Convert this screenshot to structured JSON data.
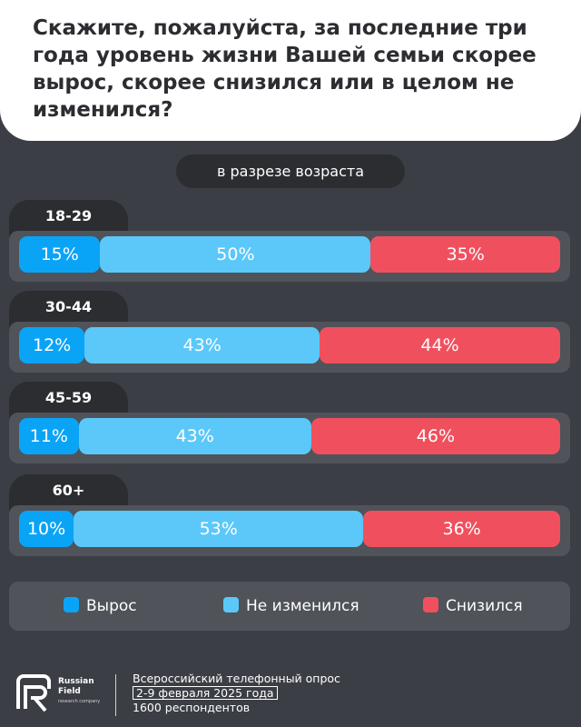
{
  "title": "Скажите, пожалуйста, за последние три года уровень жизни Вашей семьи скорее вырос, скорее снизился или в целом не изменился?",
  "subtitle": "в разрезе возраста",
  "colors": {
    "grew": "#0aa4f6",
    "unchanged": "#5bc8f9",
    "declined": "#f0505e",
    "background": "#3b3e44"
  },
  "chart_data": {
    "type": "bar",
    "orientation": "horizontal",
    "stacked": true,
    "unit": "%",
    "categories": [
      "18-29",
      "30-44",
      "45-59",
      "60+"
    ],
    "series": [
      {
        "name": "Вырос",
        "values": [
          15,
          12,
          11,
          10
        ]
      },
      {
        "name": "Не изменился",
        "values": [
          50,
          43,
          43,
          53
        ]
      },
      {
        "name": "Снизился",
        "values": [
          35,
          44,
          46,
          36
        ]
      }
    ],
    "legend_position": "bottom"
  },
  "legend": {
    "grew": "Вырос",
    "unchanged": "Не изменился",
    "declined": "Снизился"
  },
  "footer": {
    "logo_name": "Russian Field",
    "logo_sub": "research company",
    "line1": "Всероссийский телефонный опрос",
    "line2": "2-9 февраля 2025  года",
    "line3": "1600 респондентов"
  }
}
